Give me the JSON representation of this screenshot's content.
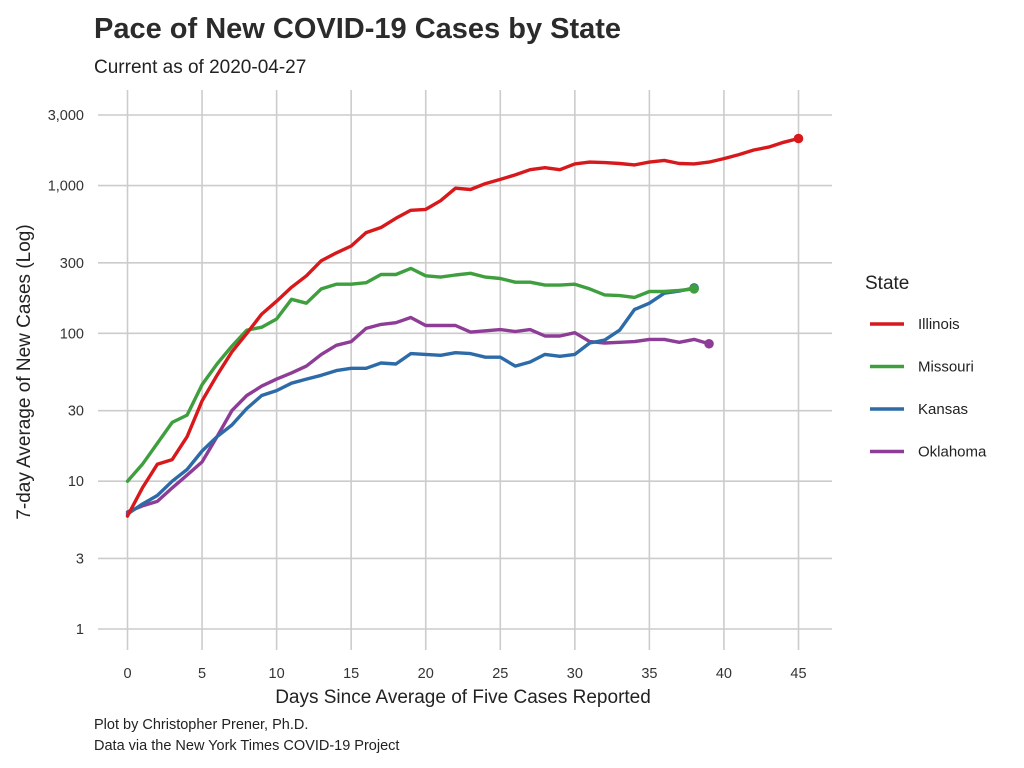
{
  "chart_data": {
    "type": "line",
    "title": "Pace of New COVID-19 Cases by State",
    "subtitle": "Current as of 2020-04-27",
    "xlabel": "Days Since Average of Five Cases Reported",
    "ylabel": "7-day Average of New Cases (Log)",
    "caption": [
      "Plot by Christopher Prener, Ph.D.",
      "Data via the New York Times COVID-19 Project"
    ],
    "y_scale": "log",
    "xlim": [
      -1.5,
      47
    ],
    "ylim": [
      0.7,
      4500
    ],
    "x_ticks": [
      {
        "value": 0,
        "label": "0"
      },
      {
        "value": 5,
        "label": "5"
      },
      {
        "value": 10,
        "label": "10"
      },
      {
        "value": 15,
        "label": "15"
      },
      {
        "value": 20,
        "label": "20"
      },
      {
        "value": 25,
        "label": "25"
      },
      {
        "value": 30,
        "label": "30"
      },
      {
        "value": 35,
        "label": "35"
      },
      {
        "value": 40,
        "label": "40"
      },
      {
        "value": 45,
        "label": "45"
      }
    ],
    "y_ticks": [
      {
        "value": 1,
        "label": "1"
      },
      {
        "value": 3,
        "label": "3"
      },
      {
        "value": 10,
        "label": "10"
      },
      {
        "value": 30,
        "label": "30"
      },
      {
        "value": 100,
        "label": "100"
      },
      {
        "value": 300,
        "label": "300"
      },
      {
        "value": 1000,
        "label": "1,000"
      },
      {
        "value": 3000,
        "label": "3,000"
      }
    ],
    "grid": true,
    "legend": {
      "title": "State",
      "position": "right"
    },
    "series": [
      {
        "name": "Illinois",
        "color": "#d7191c",
        "x": [
          0,
          1,
          2,
          3,
          4,
          5,
          6,
          7,
          8,
          9,
          10,
          11,
          12,
          13,
          14,
          15,
          16,
          17,
          18,
          19,
          20,
          21,
          22,
          23,
          24,
          25,
          26,
          27,
          28,
          29,
          30,
          31,
          32,
          33,
          34,
          35,
          36,
          37,
          38,
          39,
          40,
          41,
          42,
          43,
          44,
          45
        ],
        "values": [
          5.8,
          9,
          13,
          14,
          20,
          35,
          52,
          75,
          100,
          135,
          165,
          205,
          245,
          310,
          350,
          390,
          480,
          520,
          600,
          680,
          690,
          790,
          960,
          940,
          1030,
          1100,
          1180,
          1280,
          1320,
          1280,
          1400,
          1440,
          1430,
          1410,
          1380,
          1440,
          1480,
          1410,
          1400,
          1440,
          1520,
          1620,
          1740,
          1820,
          1960,
          2080
        ]
      },
      {
        "name": "Missouri",
        "color": "#3f9f3f",
        "x": [
          0,
          1,
          2,
          3,
          4,
          5,
          6,
          7,
          8,
          9,
          10,
          11,
          12,
          13,
          14,
          15,
          16,
          17,
          18,
          19,
          20,
          21,
          22,
          23,
          24,
          25,
          26,
          27,
          28,
          29,
          30,
          31,
          32,
          33,
          34,
          35,
          36,
          37,
          38
        ],
        "values": [
          10,
          13,
          18,
          25,
          28,
          45,
          62,
          82,
          105,
          110,
          125,
          170,
          160,
          200,
          215,
          215,
          220,
          250,
          250,
          275,
          245,
          240,
          248,
          255,
          240,
          235,
          222,
          222,
          212,
          212,
          215,
          200,
          182,
          180,
          175,
          192,
          192,
          195,
          200
        ]
      },
      {
        "name": "Kansas",
        "color": "#2d6ba8",
        "x": [
          0,
          1,
          2,
          3,
          4,
          5,
          6,
          7,
          8,
          9,
          10,
          11,
          12,
          13,
          14,
          15,
          16,
          17,
          18,
          19,
          20,
          21,
          22,
          23,
          24,
          25,
          26,
          27,
          28,
          29,
          30,
          31,
          32,
          33,
          34,
          35,
          36,
          37,
          38
        ],
        "values": [
          6,
          7,
          8,
          10,
          12,
          16,
          20,
          24,
          31,
          38,
          41,
          46,
          49,
          52,
          56,
          58,
          58,
          63,
          62,
          73,
          72,
          71,
          74,
          73,
          69,
          69,
          60,
          64,
          72,
          70,
          72,
          86,
          90,
          105,
          145,
          160,
          187,
          193,
          203
        ]
      },
      {
        "name": "Oklahoma",
        "color": "#8e3d97",
        "x": [
          0,
          1,
          2,
          3,
          4,
          5,
          6,
          7,
          8,
          9,
          10,
          11,
          12,
          13,
          14,
          15,
          16,
          17,
          18,
          19,
          20,
          21,
          22,
          23,
          24,
          25,
          26,
          27,
          28,
          29,
          30,
          31,
          32,
          33,
          34,
          35,
          36,
          37,
          38,
          39
        ],
        "values": [
          6.2,
          6.8,
          7.3,
          9,
          11,
          13.5,
          20,
          30,
          38,
          44,
          49,
          54,
          60,
          72,
          83,
          88,
          108,
          115,
          118,
          128,
          113,
          113,
          113,
          102,
          104,
          106,
          103,
          106,
          96,
          96,
          101,
          88,
          86,
          87,
          88,
          91,
          91,
          87,
          91,
          85
        ]
      }
    ]
  }
}
